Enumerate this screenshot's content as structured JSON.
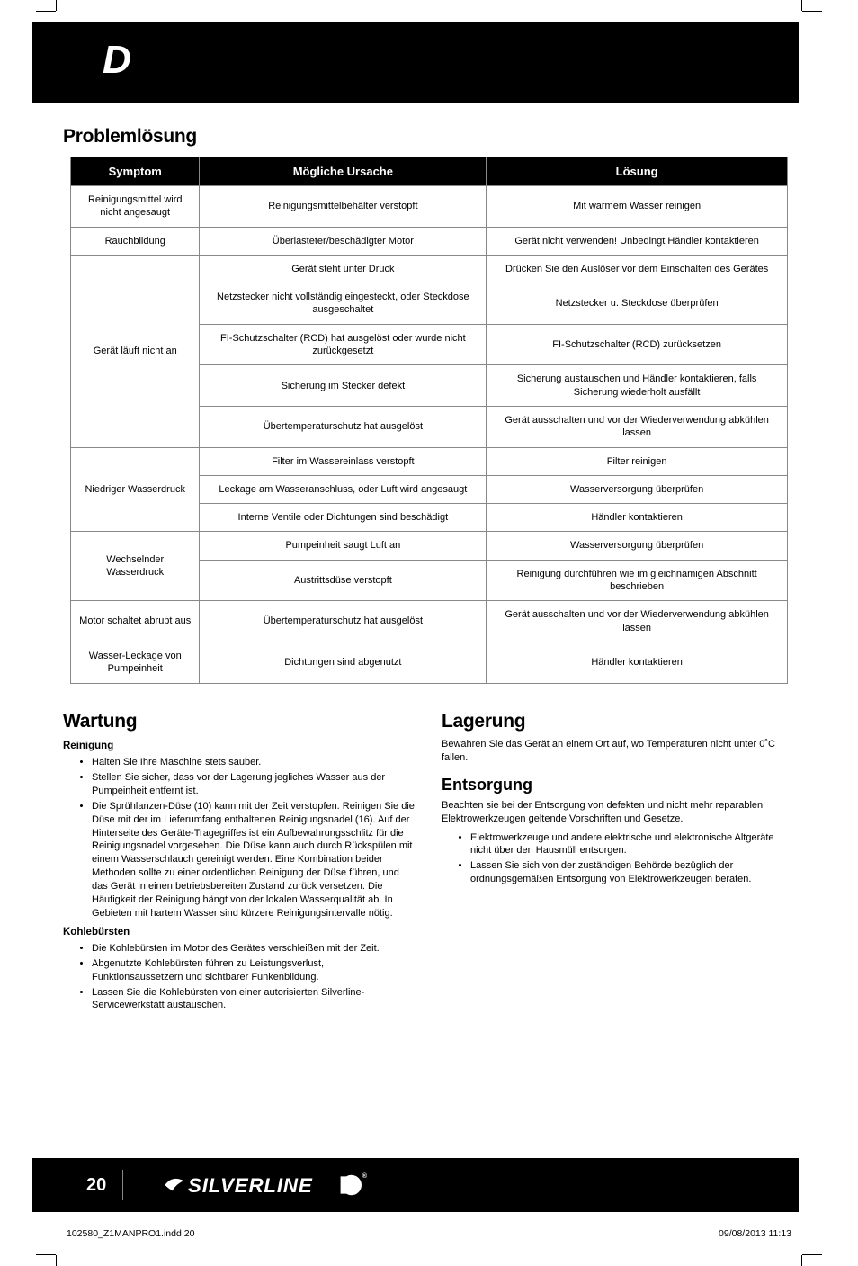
{
  "header": {
    "lang_badge": "D"
  },
  "sections": {
    "troubleshooting_title": "Problemlösung",
    "maintenance_title": "Wartung",
    "storage_title": "Lagerung",
    "disposal_title": "Entsorgung"
  },
  "table": {
    "headers": {
      "symptom": "Symptom",
      "cause": "Mögliche Ursache",
      "solution": "Lösung"
    },
    "groups": [
      {
        "symptom": "Reinigungsmittel wird nicht angesaugt",
        "rows": [
          {
            "cause": "Reinigungsmittelbehälter verstopft",
            "solution": "Mit warmem Wasser reinigen"
          }
        ]
      },
      {
        "symptom": "Rauchbildung",
        "rows": [
          {
            "cause": "Überlasteter/beschädigter Motor",
            "solution": "Gerät nicht verwenden! Unbedingt Händler kontaktieren"
          }
        ]
      },
      {
        "symptom": "Gerät läuft nicht an",
        "rows": [
          {
            "cause": "Gerät steht unter Druck",
            "solution": "Drücken Sie den Auslöser vor dem Einschalten des Gerätes"
          },
          {
            "cause": "Netzstecker nicht vollständig eingesteckt, oder Steckdose ausgeschaltet",
            "solution": "Netzstecker u. Steckdose überprüfen"
          },
          {
            "cause": "FI-Schutzschalter (RCD) hat ausgelöst oder wurde nicht zurückgesetzt",
            "solution": "FI-Schutzschalter (RCD) zurücksetzen"
          },
          {
            "cause": "Sicherung im Stecker defekt",
            "solution": "Sicherung austauschen und Händler kontaktieren, falls Sicherung wiederholt ausfällt"
          },
          {
            "cause": "Übertemperaturschutz hat ausgelöst",
            "solution": "Gerät ausschalten und vor der Wiederverwendung abkühlen lassen"
          }
        ]
      },
      {
        "symptom": "Niedriger Wasserdruck",
        "rows": [
          {
            "cause": "Filter im Wassereinlass verstopft",
            "solution": "Filter reinigen"
          },
          {
            "cause": "Leckage am Wasseranschluss, oder Luft wird angesaugt",
            "solution": "Wasserversorgung überprüfen"
          },
          {
            "cause": "Interne Ventile oder Dichtungen sind beschädigt",
            "solution": "Händler kontaktieren"
          }
        ]
      },
      {
        "symptom": "Wechselnder Wasserdruck",
        "rows": [
          {
            "cause": "Pumpeinheit saugt Luft an",
            "solution": "Wasserversorgung überprüfen"
          },
          {
            "cause": "Austrittsdüse verstopft",
            "solution": "Reinigung durchführen wie im gleichnamigen Abschnitt  beschrieben"
          }
        ]
      },
      {
        "symptom": "Motor schaltet abrupt aus",
        "rows": [
          {
            "cause": "Übertemperaturschutz hat ausgelöst",
            "solution": "Gerät ausschalten und vor der Wiederverwendung abkühlen lassen"
          }
        ]
      },
      {
        "symptom": "Wasser-Leckage von Pumpeinheit",
        "rows": [
          {
            "cause": "Dichtungen sind abgenutzt",
            "solution": "Händler kontaktieren"
          }
        ]
      }
    ]
  },
  "maintenance": {
    "cleaning_sub": "Reinigung",
    "cleaning_items": [
      "Halten Sie Ihre Maschine stets sauber.",
      "Stellen Sie sicher, dass vor der Lagerung jegliches Wasser aus der Pumpeinheit entfernt ist.",
      "Die Sprühlanzen-Düse (10) kann mit der Zeit verstopfen. Reinigen Sie die Düse mit der im Lieferumfang enthaltenen Reinigungsnadel (16). Auf der Hinterseite des Geräte-Tragegriffes ist ein Aufbewahrungsschlitz für die Reinigungsnadel vorgesehen. Die Düse kann auch durch Rückspülen mit einem Wasserschlauch gereinigt werden. Eine Kombination beider Methoden sollte zu einer ordentlichen Reinigung der Düse führen, und das Gerät in einen betriebsbereiten Zustand zurück versetzen. Die Häufigkeit der Reinigung hängt von der lokalen Wasserqualität ab. In Gebieten mit hartem Wasser sind kürzere Reinigungsintervalle nötig."
    ],
    "brushes_sub": "Kohlebürsten",
    "brushes_items": [
      "Die Kohlebürsten im Motor des Gerätes verschleißen mit der Zeit.",
      "Abgenutzte Kohlebürsten führen zu Leistungsverlust, Funktionsaussetzern und sichtbarer Funkenbildung.",
      "Lassen Sie die Kohlebürsten von einer autorisierten Silverline-Servicewerkstatt austauschen."
    ]
  },
  "storage": {
    "text": "Bewahren Sie das Gerät an einem Ort auf, wo Temperaturen nicht unter 0˚C fallen."
  },
  "disposal": {
    "intro": "Beachten sie bei der Entsorgung von defekten und nicht mehr reparablen Elektrowerkzeugen geltende Vorschriften und Gesetze.",
    "items": [
      "Elektrowerkzeuge und andere elektrische und elektronische Altgeräte nicht über den Hausmüll entsorgen.",
      "Lassen Sie sich von der zuständigen Behörde bezüglich der ordnungsgemäßen Entsorgung von Elektrowerkzeugen beraten."
    ]
  },
  "footer": {
    "page_number": "20",
    "brand": "SILVERLINE",
    "file_ref": "102580_Z1MANPRO1.indd   20",
    "timestamp": "09/08/2013   11:13"
  },
  "colors": {
    "header_bg": "#000000",
    "header_fg": "#ffffff",
    "table_border": "#888888",
    "body_text": "#000000"
  }
}
